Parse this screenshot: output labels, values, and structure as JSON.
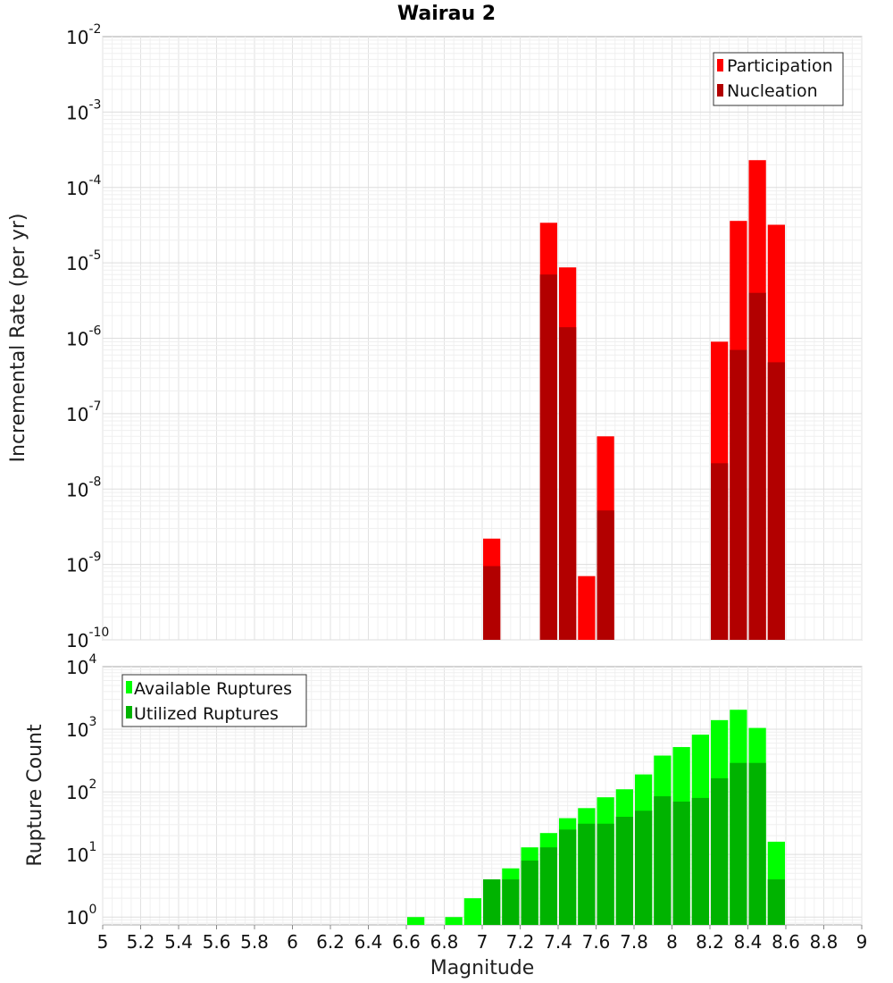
{
  "chart_data": [
    {
      "type": "bar",
      "title": "Wairau 2",
      "ylabel": "Incremental Rate (per yr)",
      "yscale": "log",
      "ylim": [
        1e-10,
        0.01
      ],
      "xlim": [
        5,
        9
      ],
      "bin_width": 0.1,
      "grid": true,
      "legend_position": "top-right",
      "y_ticks": [
        {
          "base": "10",
          "exp": "-10",
          "value": 1e-10
        },
        {
          "base": "10",
          "exp": "-9",
          "value": 1e-09
        },
        {
          "base": "10",
          "exp": "-8",
          "value": 1e-08
        },
        {
          "base": "10",
          "exp": "-7",
          "value": 1e-07
        },
        {
          "base": "10",
          "exp": "-6",
          "value": 1e-06
        },
        {
          "base": "10",
          "exp": "-5",
          "value": 1e-05
        },
        {
          "base": "10",
          "exp": "-4",
          "value": 0.0001
        },
        {
          "base": "10",
          "exp": "-3",
          "value": 0.001
        },
        {
          "base": "10",
          "exp": "-2",
          "value": 0.01
        }
      ],
      "series": [
        {
          "name": "Participation",
          "color": "#ff0000",
          "x": [
            7.05,
            7.35,
            7.45,
            7.55,
            7.65,
            8.25,
            8.35,
            8.45,
            8.55
          ],
          "values": [
            2.2e-09,
            3.4e-05,
            8.7e-06,
            7e-10,
            5e-08,
            9e-07,
            3.6e-05,
            0.00023,
            3.2e-05
          ]
        },
        {
          "name": "Nucleation",
          "color": "#b20000",
          "x": [
            7.05,
            7.35,
            7.45,
            7.65,
            8.25,
            8.35,
            8.45,
            8.55
          ],
          "values": [
            9.5e-10,
            7e-06,
            1.4e-06,
            5.2e-09,
            2.2e-08,
            7e-07,
            4e-06,
            4.8e-07
          ]
        }
      ]
    },
    {
      "type": "bar",
      "xlabel": "Magnitude",
      "ylabel": "Rupture Count",
      "yscale": "log",
      "ylim": [
        0.75,
        10000
      ],
      "xlim": [
        5,
        9
      ],
      "bin_width": 0.1,
      "grid": true,
      "legend_position": "top-left",
      "y_ticks": [
        {
          "base": "10",
          "exp": "0",
          "value": 1
        },
        {
          "base": "10",
          "exp": "1",
          "value": 10
        },
        {
          "base": "10",
          "exp": "2",
          "value": 100
        },
        {
          "base": "10",
          "exp": "3",
          "value": 1000
        },
        {
          "base": "10",
          "exp": "4",
          "value": 10000
        }
      ],
      "x_ticks": [
        "5",
        "5.2",
        "5.4",
        "5.6",
        "5.8",
        "6",
        "6.2",
        "6.4",
        "6.6",
        "6.8",
        "7",
        "7.2",
        "7.4",
        "7.6",
        "7.8",
        "8",
        "8.2",
        "8.4",
        "8.6",
        "8.8",
        "9"
      ],
      "series": [
        {
          "name": "Available Ruptures",
          "color": "#00ff00",
          "x": [
            6.65,
            6.85,
            6.95,
            7.05,
            7.15,
            7.25,
            7.35,
            7.45,
            7.55,
            7.65,
            7.75,
            7.85,
            7.95,
            8.05,
            8.15,
            8.25,
            8.35,
            8.45,
            8.55
          ],
          "values": [
            1,
            1,
            2,
            4,
            6,
            13,
            22,
            38,
            55,
            82,
            110,
            190,
            380,
            520,
            820,
            1400,
            2050,
            1050,
            16
          ]
        },
        {
          "name": "Utilized Ruptures",
          "color": "#00b300",
          "x": [
            7.05,
            7.15,
            7.25,
            7.35,
            7.45,
            7.55,
            7.65,
            7.75,
            7.85,
            7.95,
            8.05,
            8.15,
            8.25,
            8.35,
            8.45,
            8.55
          ],
          "values": [
            4,
            4,
            8,
            13,
            25,
            31,
            31,
            40,
            50,
            85,
            70,
            80,
            165,
            290,
            290,
            4
          ]
        }
      ]
    }
  ]
}
